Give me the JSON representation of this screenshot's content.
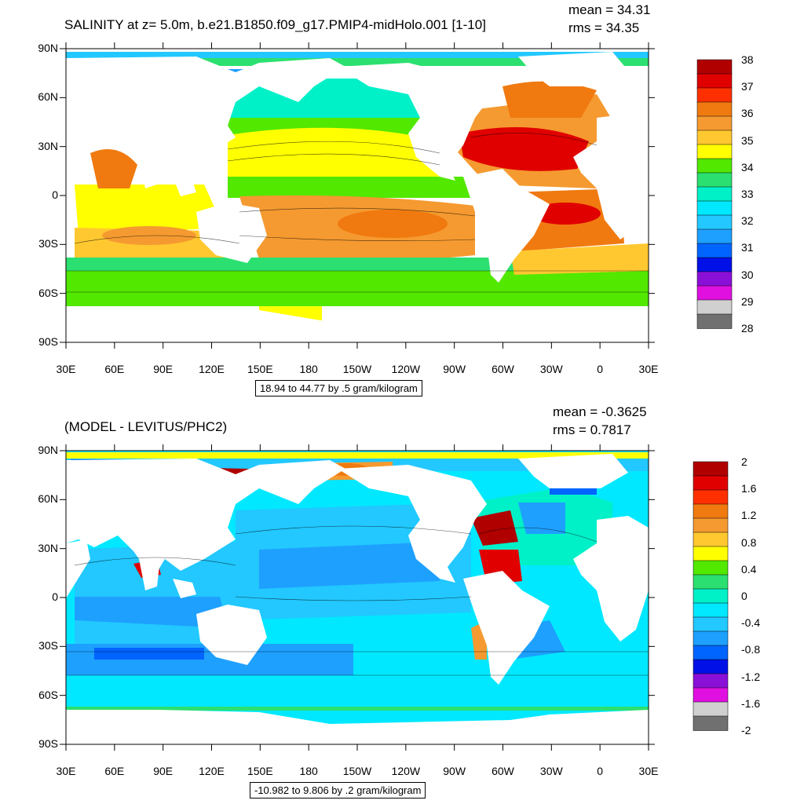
{
  "panels": [
    {
      "id": "top",
      "title": "SALINITY at z=   5.0m, b.e21.B1850.f09_g17.PMIP4-midHolo.001 [1-10]",
      "mean_label": "mean = 34.31",
      "rms_label": "rms = 34.35",
      "info": "18.94 to 44.77 by .5 gram/kilogram",
      "lat_ticks": [
        "90N",
        "60N",
        "30N",
        "0",
        "30S",
        "60S",
        "90S"
      ],
      "lon_ticks": [
        "30E",
        "60E",
        "90E",
        "120E",
        "150E",
        "180",
        "150W",
        "120W",
        "90W",
        "60W",
        "30W",
        "0",
        "30E"
      ],
      "colorbar": {
        "labels": [
          "38",
          "37",
          "36",
          "35",
          "34",
          "33",
          "32",
          "31",
          "30",
          "29",
          "28"
        ],
        "colors": [
          "#b00000",
          "#e00000",
          "#ff3000",
          "#f07a10",
          "#f59a30",
          "#ffc830",
          "#ffff00",
          "#52e800",
          "#2be070",
          "#00f0c8",
          "#00e8ff",
          "#22c8ff",
          "#1ea0ff",
          "#0064ff",
          "#0010e6",
          "#8a10d8",
          "#e010e0",
          "#d0d0d0",
          "#707070"
        ]
      }
    },
    {
      "id": "bottom",
      "title": "(MODEL - LEVITUS/PHC2)",
      "mean_label": "mean = -0.3625",
      "rms_label": "rms = 0.7817",
      "info": "-10.982 to 9.806 by .2 gram/kilogram",
      "lat_ticks": [
        "90N",
        "60N",
        "30N",
        "0",
        "30S",
        "60S",
        "90S"
      ],
      "lon_ticks": [
        "30E",
        "60E",
        "90E",
        "120E",
        "150E",
        "180",
        "150W",
        "120W",
        "90W",
        "60W",
        "30W",
        "0",
        "30E"
      ],
      "colorbar": {
        "labels": [
          "2",
          "1.6",
          "1.2",
          "0.8",
          "0.4",
          "0",
          "-0.4",
          "-0.8",
          "-1.2",
          "-1.6",
          "-2"
        ],
        "colors": [
          "#b00000",
          "#e00000",
          "#ff3000",
          "#f07a10",
          "#f59a30",
          "#ffc830",
          "#ffff00",
          "#52e800",
          "#2be070",
          "#00f0c8",
          "#00e8ff",
          "#22c8ff",
          "#1ea0ff",
          "#0064ff",
          "#0010e6",
          "#8a10d8",
          "#e010e0",
          "#d0d0d0",
          "#707070"
        ]
      }
    }
  ]
}
